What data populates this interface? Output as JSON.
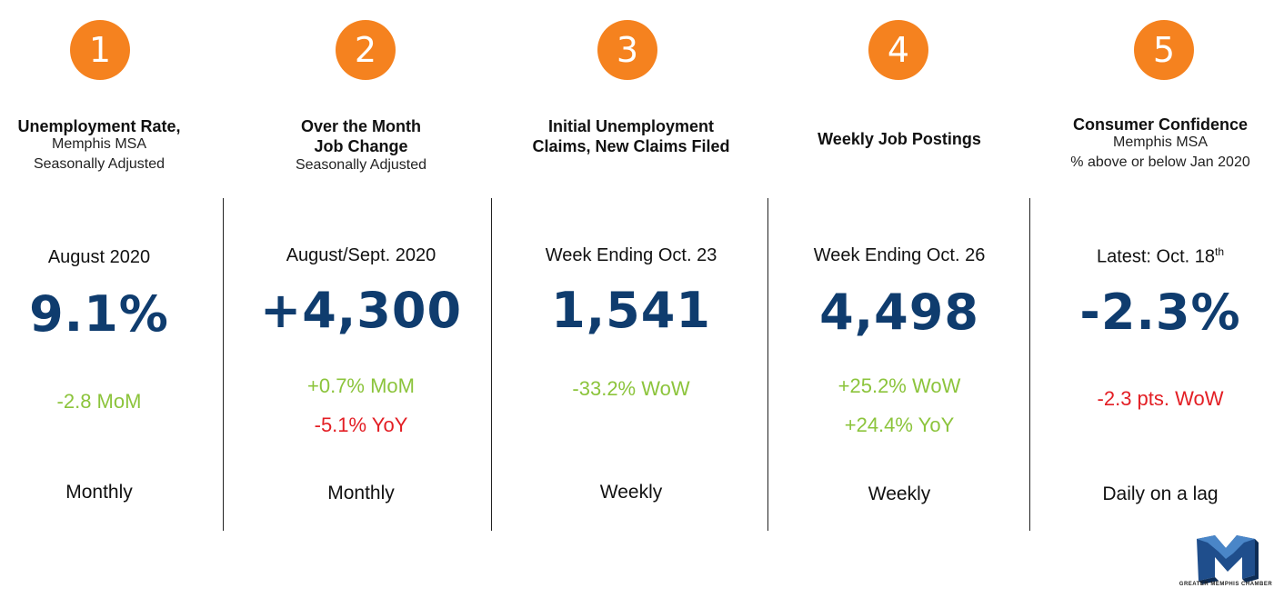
{
  "colors": {
    "accent": "#f5821f",
    "value": "#0f3c6e",
    "positive": "#8cc43c",
    "negative": "#e31e24"
  },
  "columns": [
    {
      "number": "1",
      "title_lines": [
        "Unemployment Rate,"
      ],
      "sub_lines": [
        "Memphis MSA",
        "Seasonally Adjusted"
      ],
      "period": "August 2020",
      "value": "9.1%",
      "changes": [
        {
          "text": "-2.8 MoM",
          "tone": "positive"
        }
      ],
      "frequency": "Monthly"
    },
    {
      "number": "2",
      "title_lines": [
        "Over the Month",
        "Job Change"
      ],
      "sub_lines": [
        "Seasonally Adjusted"
      ],
      "period": "August/Sept. 2020",
      "value": "+4,300",
      "changes": [
        {
          "text": "+0.7% MoM",
          "tone": "positive"
        },
        {
          "text": "-5.1% YoY",
          "tone": "negative"
        }
      ],
      "frequency": "Monthly"
    },
    {
      "number": "3",
      "title_lines": [
        "Initial Unemployment",
        "Claims, New Claims Filed"
      ],
      "sub_lines": [],
      "period": "Week Ending Oct. 23",
      "value": "1,541",
      "changes": [
        {
          "text": "-33.2% WoW",
          "tone": "positive"
        }
      ],
      "frequency": "Weekly"
    },
    {
      "number": "4",
      "title_lines": [
        "Weekly Job Postings"
      ],
      "sub_lines": [],
      "period": "Week Ending Oct. 26",
      "value": "4,498",
      "changes": [
        {
          "text": "+25.2% WoW",
          "tone": "positive"
        },
        {
          "text": "+24.4% YoY",
          "tone": "positive"
        }
      ],
      "frequency": "Weekly"
    },
    {
      "number": "5",
      "title_lines": [
        "Consumer Confidence"
      ],
      "sub_lines": [
        "Memphis MSA",
        "% above or below Jan 2020"
      ],
      "period": "Latest: Oct. 18",
      "period_sup": "th",
      "value": "-2.3%",
      "changes": [
        {
          "text": "-2.3 pts. WoW",
          "tone": "negative"
        }
      ],
      "frequency": "Daily on a lag"
    }
  ],
  "logo": {
    "text": "GREATER MEMPHIS CHAMBER",
    "icon": "memphis-chamber-m-logo"
  }
}
